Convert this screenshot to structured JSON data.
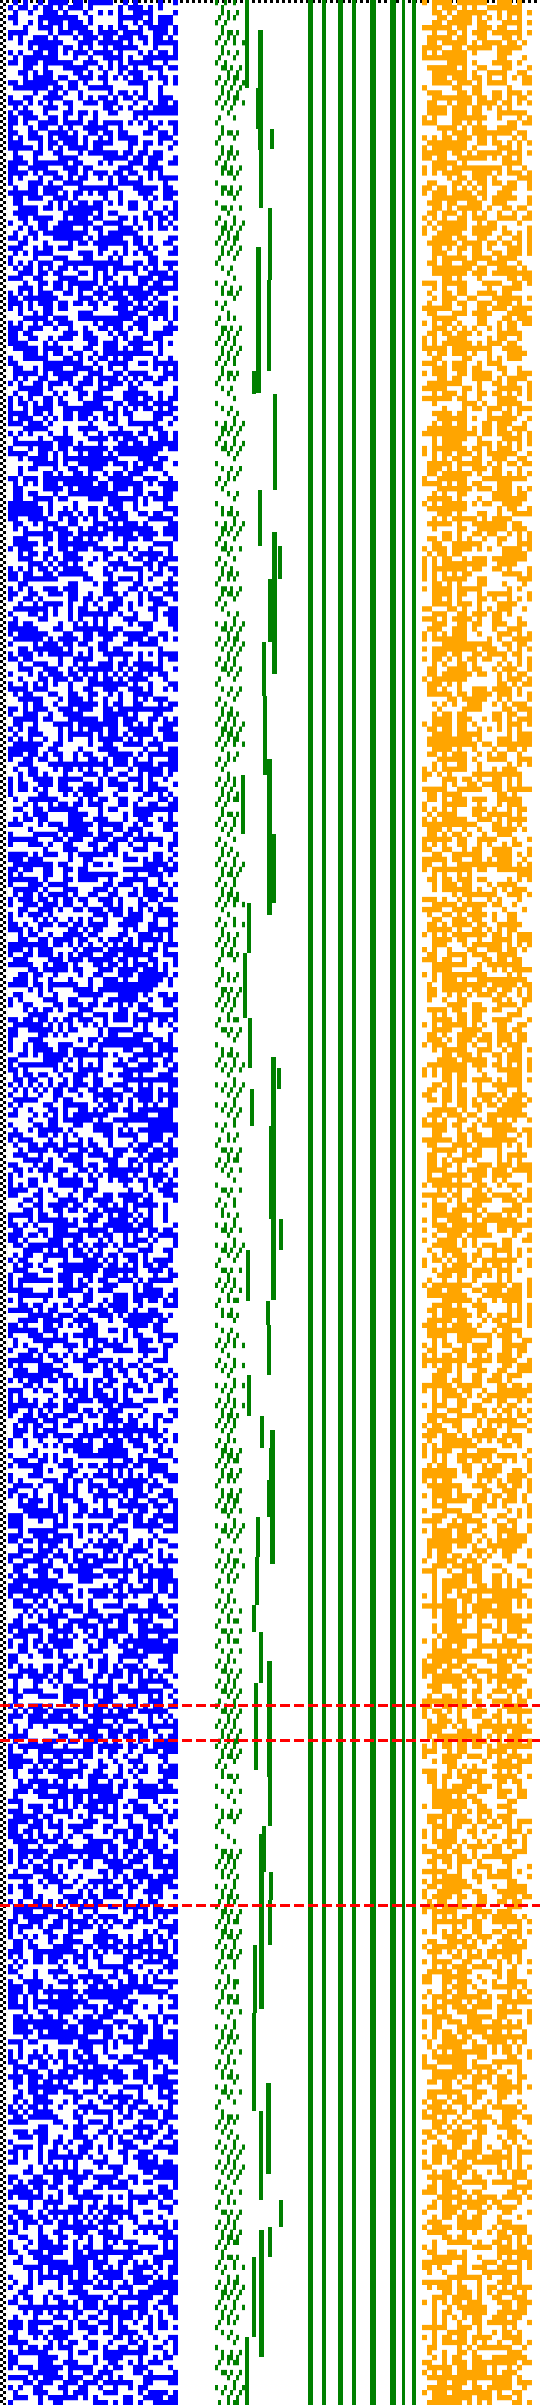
{
  "colors": {
    "background": "#ffffff",
    "random_block": "#0000ff",
    "tree_edges": "#008000",
    "pattern_block": "#ffa500",
    "marker_lines": "#ff0000",
    "border_dots": "#000000"
  },
  "structure": {
    "grid_columns_random_block": 34,
    "grid_rows": 480,
    "random_fill_fraction": 0.55,
    "pattern_fill_fraction": 0.65,
    "highlighted_rows": [
      340,
      347,
      380
    ]
  }
}
